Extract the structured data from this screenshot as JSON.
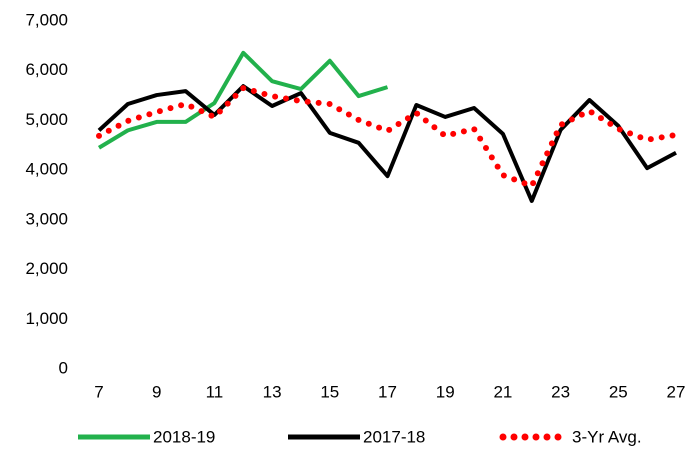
{
  "chart_data": {
    "type": "line",
    "xlim": [
      7,
      27
    ],
    "xticks": [
      7,
      9,
      11,
      13,
      15,
      17,
      19,
      21,
      23,
      25,
      27
    ],
    "ylim": [
      0,
      7000
    ],
    "yticks": [
      0,
      {
        "value": 1000,
        "label": "1,000"
      },
      {
        "value": 2000,
        "label": "2,000"
      },
      {
        "value": 3000,
        "label": "3,000"
      },
      {
        "value": 4000,
        "label": "4,000"
      },
      {
        "value": 5000,
        "label": "5,000"
      },
      {
        "value": 6000,
        "label": "6,000"
      },
      {
        "value": 7000,
        "label": "7,000"
      }
    ],
    "grid": false,
    "legend": "bottom",
    "series": [
      {
        "name": "2018-19",
        "color": "#22b14c",
        "style": "solid",
        "x": [
          7,
          8,
          9,
          10,
          11,
          12,
          13,
          14,
          15,
          16,
          17
        ],
        "values": [
          4450,
          4800,
          4970,
          4970,
          5350,
          6360,
          5790,
          5630,
          6200,
          5490,
          5670
        ]
      },
      {
        "name": "2017-18",
        "color": "#000000",
        "style": "solid",
        "x": [
          7,
          8,
          9,
          10,
          11,
          12,
          13,
          14,
          15,
          16,
          17,
          18,
          19,
          20,
          21,
          22,
          23,
          24,
          25,
          26,
          27
        ],
        "values": [
          4800,
          5330,
          5510,
          5590,
          5110,
          5690,
          5290,
          5550,
          4750,
          4550,
          3880,
          5310,
          5070,
          5250,
          4730,
          3380,
          4810,
          5410,
          4890,
          4040,
          4350
        ]
      },
      {
        "name": "3-Yr Avg.",
        "color": "#ff0000",
        "style": "dotted",
        "x": [
          7,
          8,
          9,
          10,
          11,
          12,
          13,
          14,
          15,
          16,
          17,
          18,
          19,
          20,
          21,
          22,
          23,
          24,
          25,
          26,
          27
        ],
        "values": [
          4690,
          4990,
          5170,
          5330,
          5070,
          5650,
          5490,
          5390,
          5330,
          5010,
          4790,
          5150,
          4690,
          4830,
          3900,
          3680,
          4910,
          5190,
          4830,
          4610,
          4710
        ]
      }
    ]
  }
}
